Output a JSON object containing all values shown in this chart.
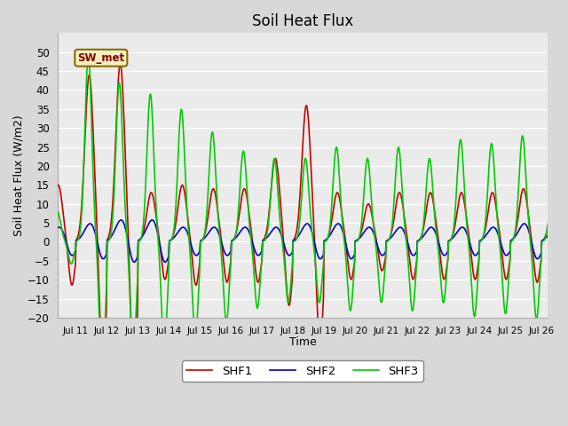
{
  "title": "Soil Heat Flux",
  "xlabel": "Time",
  "ylabel": "Soil Heat Flux (W/m2)",
  "ylim": [
    -20,
    55
  ],
  "yticks": [
    -20,
    -15,
    -10,
    -5,
    0,
    5,
    10,
    15,
    20,
    25,
    30,
    35,
    40,
    45,
    50
  ],
  "xlim_days": [
    10.42,
    26.2
  ],
  "xtick_days": [
    11,
    12,
    13,
    14,
    15,
    16,
    17,
    18,
    19,
    20,
    21,
    22,
    23,
    24,
    25,
    26
  ],
  "xtick_labels": [
    "Jul 11",
    "Jul 12",
    "Jul 13",
    "Jul 14",
    "Jul 15",
    "Jul 16",
    "Jul 17",
    "Jul 18",
    "Jul 19",
    "Jul 20",
    "Jul 21",
    "Jul 22",
    "Jul 23",
    "Jul 24",
    "Jul 25",
    "Jul 26"
  ],
  "color_SHF1": "#cc0000",
  "color_SHF2": "#0000cc",
  "color_SHF3": "#00cc00",
  "legend_labels": [
    "SHF1",
    "SHF2",
    "SHF3"
  ],
  "annotation_text": "SW_met",
  "background_color": "#d8d8d8",
  "plot_bg_color": "#ebebeb",
  "grid_color": "#ffffff",
  "linewidth": 1.2,
  "title_fontsize": 12,
  "axis_label_fontsize": 9
}
